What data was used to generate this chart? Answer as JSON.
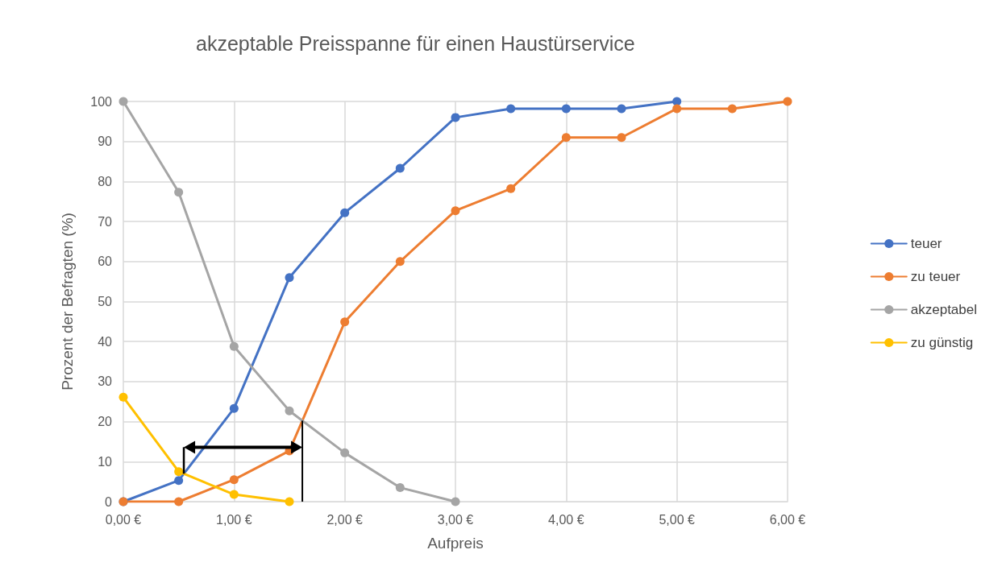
{
  "chart_data": {
    "type": "line",
    "title": "akzeptable Preisspanne für einen Haustürservice",
    "xlabel": "Aufpreis",
    "ylabel": "Prozent der Befragten (%)",
    "series": [
      {
        "name": "teuer",
        "color": "#4472c4",
        "x": [
          0,
          0.5,
          1,
          1.5,
          2,
          2.5,
          3,
          3.5,
          4,
          4.5,
          5
        ],
        "values": [
          0,
          5.3,
          23.3,
          56,
          72.2,
          83.3,
          96,
          98.2,
          98.2,
          98.2,
          100
        ]
      },
      {
        "name": "zu teuer",
        "color": "#ed7d31",
        "x": [
          0,
          0.5,
          1,
          1.5,
          2,
          2.5,
          3,
          3.5,
          4,
          4.5,
          5,
          5.5,
          6
        ],
        "values": [
          0,
          0,
          5.5,
          12.7,
          44.9,
          60,
          72.7,
          78.2,
          91,
          91,
          98.2,
          98.2,
          100
        ]
      },
      {
        "name": "akzeptabel",
        "color": "#a5a5a5",
        "x": [
          0,
          0.5,
          1,
          1.5,
          2,
          2.5,
          3
        ],
        "values": [
          100,
          77.3,
          38.8,
          22.7,
          12.2,
          3.5,
          0
        ]
      },
      {
        "name": "zu günstig",
        "color": "#ffc000",
        "x": [
          0,
          0.5,
          1,
          1.5
        ],
        "values": [
          26.1,
          7.5,
          1.8,
          0
        ]
      }
    ],
    "xlim": [
      0,
      6
    ],
    "xticks": [
      {
        "value": 0,
        "label": "0,00 €"
      },
      {
        "value": 1,
        "label": "1,00 €"
      },
      {
        "value": 2,
        "label": "2,00 €"
      },
      {
        "value": 3,
        "label": "3,00 €"
      },
      {
        "value": 4,
        "label": "4,00 €"
      },
      {
        "value": 5,
        "label": "5,00 €"
      },
      {
        "value": 6,
        "label": "6,00 €"
      }
    ],
    "ylim": [
      0,
      100
    ],
    "yticks": [
      0,
      10,
      20,
      30,
      40,
      50,
      60,
      70,
      80,
      90,
      100
    ],
    "grid": true,
    "legend": "right",
    "marker": "circle",
    "line_style": "solid"
  }
}
